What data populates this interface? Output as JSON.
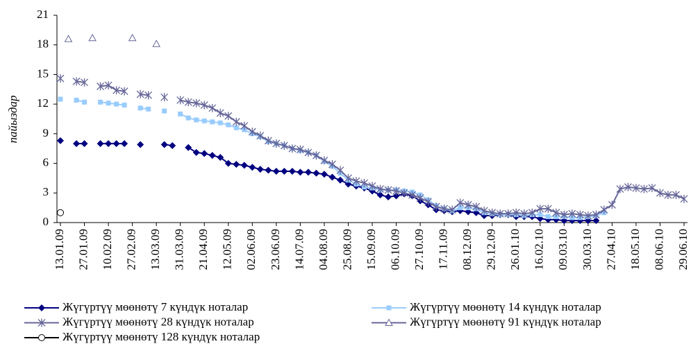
{
  "chart_data": {
    "type": "line",
    "y_label": "пайыздар",
    "categories": [
      "13.01.09",
      null,
      null,
      "27.01.09",
      null,
      null,
      "10.02.09",
      null,
      null,
      "27.02.09",
      null,
      null,
      "13.03.09",
      null,
      null,
      "31.03.09",
      null,
      null,
      "21.04.09",
      null,
      null,
      "12.05.09",
      null,
      null,
      "02.06.09",
      null,
      null,
      "23.06.09",
      null,
      null,
      "14.07.09",
      null,
      null,
      "04.08.09",
      null,
      null,
      "25.08.09",
      null,
      null,
      "15.09.09",
      null,
      null,
      "06.10.09",
      null,
      null,
      "27.10.09",
      null,
      null,
      "17.11.09",
      null,
      null,
      "08.12.09",
      null,
      null,
      "29.12.09",
      null,
      null,
      "26.01.10",
      null,
      null,
      "16.02.10",
      null,
      null,
      "09.03.10",
      null,
      null,
      "30.03.10",
      null,
      null,
      "27.04.10",
      null,
      null,
      "18.05.10",
      null,
      null,
      "08.06.10",
      null,
      null,
      "29.06.10"
    ],
    "ylim": [
      0,
      21
    ],
    "yticks": [
      0,
      3,
      6,
      9,
      12,
      15,
      18,
      21
    ],
    "series": [
      {
        "name": "Жүгүртүү мөөнөтү 7 күндүк ноталар",
        "color": "#000080",
        "marker": "diamond",
        "line": true,
        "values": [
          8.3,
          null,
          8.0,
          8.0,
          null,
          8.0,
          8.0,
          8.0,
          8.0,
          null,
          7.9,
          null,
          null,
          7.9,
          7.8,
          null,
          7.6,
          7.1,
          7.0,
          6.8,
          6.6,
          6.0,
          5.9,
          5.8,
          5.6,
          5.4,
          5.3,
          5.2,
          5.2,
          5.2,
          5.1,
          5.1,
          5.0,
          4.9,
          4.6,
          4.3,
          3.9,
          3.7,
          3.5,
          3.2,
          2.8,
          2.6,
          2.7,
          2.9,
          2.7,
          2.2,
          1.8,
          1.3,
          1.2,
          1.1,
          1.2,
          1.1,
          1.0,
          0.7,
          0.7,
          0.8,
          0.8,
          0.6,
          0.6,
          0.6,
          0.4,
          0.3,
          0.3,
          0.2,
          0.2,
          0.2,
          0.2,
          0.2,
          null,
          null,
          null,
          null,
          null,
          null,
          null,
          null,
          null,
          null,
          null
        ]
      },
      {
        "name": "Жүгүртүү мөөнөтү 14 күндүк ноталар",
        "color": "#99ccff",
        "marker": "square",
        "line": true,
        "values": [
          12.5,
          null,
          12.4,
          12.2,
          null,
          12.2,
          12.1,
          12.0,
          11.9,
          null,
          11.6,
          11.5,
          null,
          11.3,
          null,
          11.0,
          10.6,
          10.4,
          10.3,
          10.2,
          10.1,
          9.9,
          9.6,
          9.4,
          9.0,
          8.7,
          8.2,
          8.0,
          7.8,
          7.5,
          7.3,
          7.1,
          6.8,
          6.2,
          5.7,
          5.0,
          4.3,
          3.9,
          3.6,
          3.5,
          3.3,
          3.3,
          3.3,
          3.2,
          3.1,
          2.8,
          2.3,
          1.7,
          1.4,
          1.2,
          1.5,
          1.5,
          1.4,
          1.0,
          0.9,
          0.8,
          0.8,
          0.8,
          0.7,
          0.8,
          0.8,
          0.6,
          0.6,
          0.6,
          0.5,
          0.5,
          0.6,
          0.7,
          1.0,
          null,
          null,
          null,
          null,
          null,
          null,
          null,
          null,
          null,
          null
        ]
      },
      {
        "name": "Жүгүртүү мөөнөтү 28 күндүк ноталар",
        "color": "#666699",
        "marker": "star",
        "line": true,
        "values": [
          14.6,
          null,
          14.3,
          14.2,
          null,
          13.8,
          13.9,
          13.4,
          13.3,
          null,
          13.0,
          12.9,
          null,
          12.7,
          null,
          12.4,
          12.2,
          12.1,
          11.9,
          11.6,
          11.1,
          10.8,
          10.2,
          9.8,
          9.2,
          8.8,
          8.3,
          8.0,
          7.8,
          7.5,
          7.4,
          7.1,
          6.8,
          6.3,
          5.9,
          5.3,
          4.5,
          4.2,
          4.0,
          3.7,
          3.4,
          3.3,
          3.2,
          3.0,
          2.8,
          2.5,
          2.1,
          1.6,
          1.4,
          1.3,
          2.0,
          1.8,
          1.6,
          1.2,
          1.0,
          0.9,
          0.9,
          1.0,
          0.9,
          1.0,
          1.4,
          1.4,
          1.0,
          0.8,
          0.9,
          0.8,
          0.7,
          0.8,
          1.3,
          1.8,
          3.4,
          3.6,
          3.5,
          3.4,
          3.5,
          3.0,
          2.8,
          2.8,
          2.4
        ]
      },
      {
        "name": "Жүгүртүү мөөнөтү 91 күндүк ноталар",
        "color": "#666699",
        "marker": "triangle",
        "line": false,
        "values": [
          null,
          18.6,
          null,
          null,
          18.7,
          null,
          null,
          null,
          null,
          18.7,
          null,
          null,
          18.1,
          null,
          null,
          null,
          null,
          null,
          null,
          null,
          null,
          null,
          null,
          null,
          null,
          null,
          null,
          null,
          null,
          null,
          null,
          null,
          null,
          null,
          null,
          null,
          null,
          null,
          null,
          null,
          null,
          null,
          null,
          null,
          null,
          null,
          null,
          null,
          null,
          null,
          null,
          null,
          null,
          null,
          null,
          null,
          null,
          null,
          null,
          null,
          null,
          null,
          null,
          null,
          null,
          null,
          null,
          null,
          null,
          null,
          null,
          null,
          null,
          null,
          null,
          null,
          null,
          null,
          null
        ]
      },
      {
        "name": "Жүгүртүү мөөнөтү 128 күндүк ноталар",
        "color": "#000000",
        "marker": "circle",
        "line": false,
        "values": [
          1.0,
          null,
          null,
          null,
          null,
          null,
          null,
          null,
          null,
          null,
          null,
          null,
          null,
          null,
          null,
          null,
          null,
          null,
          null,
          null,
          null,
          null,
          null,
          null,
          null,
          null,
          null,
          null,
          null,
          null,
          null,
          null,
          null,
          null,
          null,
          null,
          null,
          null,
          null,
          null,
          null,
          null,
          null,
          null,
          null,
          null,
          null,
          null,
          null,
          null,
          null,
          null,
          null,
          null,
          null,
          null,
          null,
          null,
          null,
          null,
          null,
          null,
          null,
          null,
          null,
          null,
          null,
          null,
          null,
          null,
          null,
          null,
          null,
          null,
          null,
          null,
          null,
          null,
          null
        ]
      }
    ]
  }
}
